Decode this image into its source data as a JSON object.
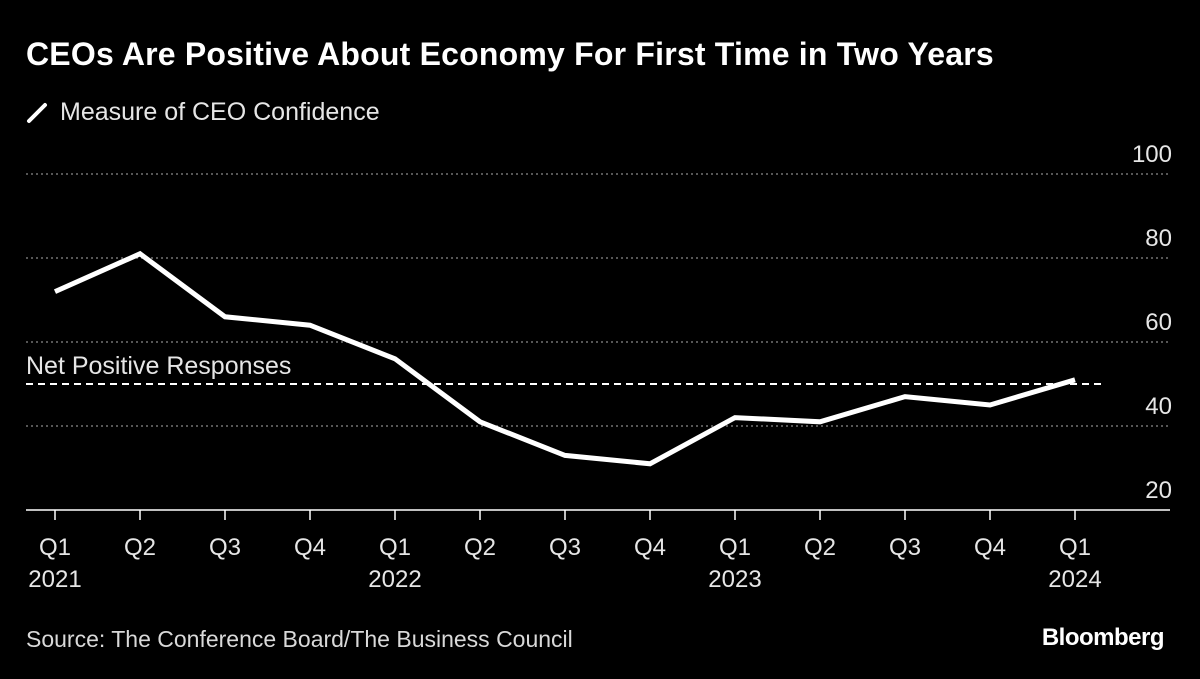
{
  "title": "CEOs Are Positive About Economy For First Time in Two Years",
  "legend": {
    "label": "Measure of CEO Confidence",
    "color": "#ffffff"
  },
  "source": "Source: The Conference Board/The Business Council",
  "brand": "Bloomberg",
  "colors": {
    "background": "#000000",
    "line": "#ffffff",
    "grid": "#8a8a8a",
    "text": "#e6e6e6"
  },
  "chart_data": {
    "type": "line",
    "title": "CEOs Are Positive About Economy For First Time in Two Years",
    "xlabel": "",
    "ylabel": "",
    "ylim": [
      20,
      100
    ],
    "yticks": [
      100,
      80,
      60,
      40,
      20
    ],
    "grid": true,
    "legend_position": "top-left",
    "y_axis_side": "right",
    "categories": [
      "Q1 2021",
      "Q2 2021",
      "Q3 2021",
      "Q4 2021",
      "Q1 2022",
      "Q2 2022",
      "Q3 2022",
      "Q4 2022",
      "Q1 2023",
      "Q2 2023",
      "Q3 2023",
      "Q4 2023",
      "Q1 2024"
    ],
    "x_tick_labels": [
      {
        "quarter": "Q1",
        "year": "2021"
      },
      {
        "quarter": "Q2",
        "year": ""
      },
      {
        "quarter": "Q3",
        "year": ""
      },
      {
        "quarter": "Q4",
        "year": ""
      },
      {
        "quarter": "Q1",
        "year": "2022"
      },
      {
        "quarter": "Q2",
        "year": ""
      },
      {
        "quarter": "Q3",
        "year": ""
      },
      {
        "quarter": "Q4",
        "year": ""
      },
      {
        "quarter": "Q1",
        "year": "2023"
      },
      {
        "quarter": "Q2",
        "year": ""
      },
      {
        "quarter": "Q3",
        "year": ""
      },
      {
        "quarter": "Q4",
        "year": ""
      },
      {
        "quarter": "Q1",
        "year": "2024"
      }
    ],
    "series": [
      {
        "name": "Measure of CEO Confidence",
        "values": [
          72,
          81,
          66,
          64,
          56,
          41,
          33,
          31,
          42,
          41,
          47,
          45,
          51
        ]
      }
    ],
    "reference_line": {
      "value": 50,
      "label": "Net Positive Responses",
      "style": "dashed"
    }
  }
}
